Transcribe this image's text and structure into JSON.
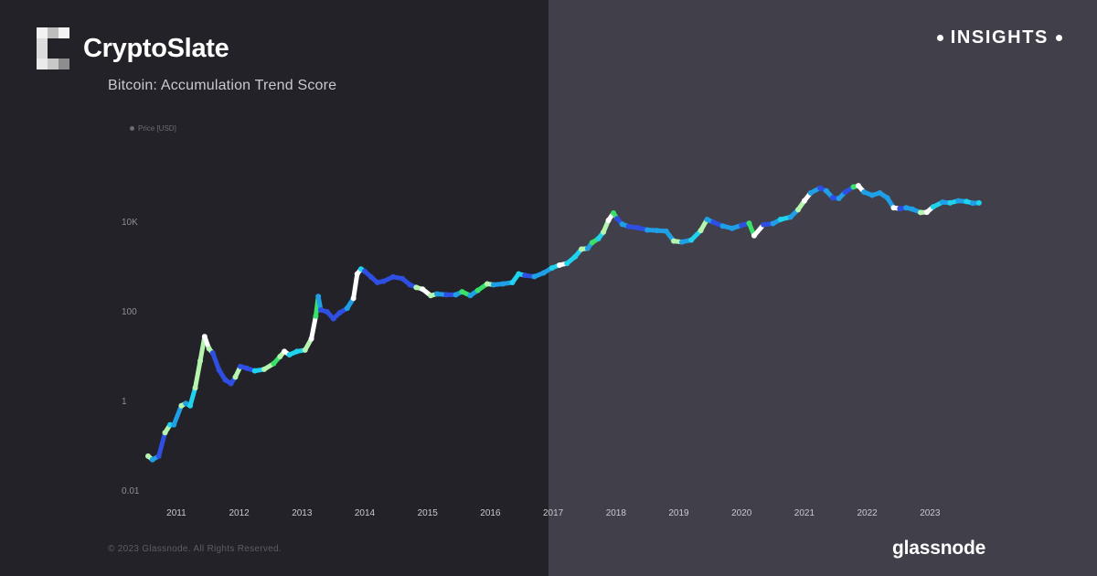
{
  "brand": {
    "name": "CryptoSlate",
    "section": "INSIGHTS"
  },
  "footer": {
    "copyright": "© 2023 Glassnode. All Rights Reserved.",
    "source": "glassnode"
  },
  "colors": {
    "background_left": "#232228",
    "background_right": "#403f4a",
    "score_high": "#ffffff",
    "score_mid_high": "#b6f5b0",
    "score_mid": "#1fd3ee",
    "score_low": "#2f4fe3",
    "score_accumulation": "#39e06a"
  },
  "chart_data": {
    "type": "line",
    "title": "Bitcoin: Accumulation Trend Score",
    "legend": [
      "Price [USD]"
    ],
    "legend_position": "top-left",
    "y_scale": "log",
    "ylim": [
      0.01,
      1000000
    ],
    "yticks": [
      {
        "value": 0.01,
        "label": "0.01"
      },
      {
        "value": 1,
        "label": "1"
      },
      {
        "value": 100,
        "label": "100"
      },
      {
        "value": 10000,
        "label": "10K"
      }
    ],
    "xlim": [
      2010.6,
      2023.8
    ],
    "xticks": [
      "2011",
      "2012",
      "2013",
      "2014",
      "2015",
      "2016",
      "2017",
      "2018",
      "2019",
      "2020",
      "2021",
      "2022",
      "2023"
    ],
    "grid": false,
    "color_encoding": "Accumulation Trend Score (0 = distribution, 1 = accumulation)",
    "series": [
      {
        "name": "Price [USD]",
        "points": [
          [
            2010.55,
            0.06,
            0.9
          ],
          [
            2010.62,
            0.05,
            0.3
          ],
          [
            2010.72,
            0.06,
            0.2
          ],
          [
            2010.82,
            0.2,
            0.9
          ],
          [
            2010.9,
            0.3,
            0.6
          ],
          [
            2010.96,
            0.3,
            0.3
          ],
          [
            2011.08,
            0.8,
            0.9
          ],
          [
            2011.15,
            0.9,
            0.4
          ],
          [
            2011.22,
            0.8,
            0.6
          ],
          [
            2011.3,
            2.0,
            0.9
          ],
          [
            2011.38,
            8.0,
            0.9
          ],
          [
            2011.45,
            28.0,
            1.0
          ],
          [
            2011.52,
            15.0,
            0.9
          ],
          [
            2011.58,
            12.0,
            0.2
          ],
          [
            2011.68,
            5.0,
            0.1
          ],
          [
            2011.78,
            3.0,
            0.1
          ],
          [
            2011.87,
            2.5,
            0.2
          ],
          [
            2011.94,
            3.5,
            0.9
          ],
          [
            2012.02,
            6.0,
            0.2
          ],
          [
            2012.12,
            5.5,
            0.2
          ],
          [
            2012.25,
            4.8,
            0.5
          ],
          [
            2012.4,
            5.2,
            0.9
          ],
          [
            2012.55,
            7.0,
            0.8
          ],
          [
            2012.65,
            10.0,
            0.9
          ],
          [
            2012.72,
            13.0,
            1.0
          ],
          [
            2012.8,
            11.0,
            0.6
          ],
          [
            2012.92,
            13.0,
            0.6
          ],
          [
            2013.05,
            14.0,
            0.9
          ],
          [
            2013.15,
            25.0,
            1.0
          ],
          [
            2013.22,
            80.0,
            0.7
          ],
          [
            2013.26,
            220.0,
            0.4
          ],
          [
            2013.3,
            110.0,
            0.1
          ],
          [
            2013.4,
            100.0,
            0.2
          ],
          [
            2013.5,
            70.0,
            0.1
          ],
          [
            2013.6,
            95.0,
            0.2
          ],
          [
            2013.72,
            120.0,
            0.3
          ],
          [
            2013.82,
            200.0,
            1.0
          ],
          [
            2013.88,
            700.0,
            1.0
          ],
          [
            2013.94,
            900.0,
            0.6
          ],
          [
            2014.0,
            800.0,
            0.2
          ],
          [
            2014.1,
            600.0,
            0.2
          ],
          [
            2014.2,
            450.0,
            0.1
          ],
          [
            2014.3,
            480.0,
            0.1
          ],
          [
            2014.45,
            600.0,
            0.2
          ],
          [
            2014.6,
            550.0,
            0.2
          ],
          [
            2014.72,
            400.0,
            0.2
          ],
          [
            2014.82,
            350.0,
            0.9
          ],
          [
            2014.92,
            320.0,
            1.0
          ],
          [
            2015.05,
            230.0,
            0.9
          ],
          [
            2015.15,
            250.0,
            0.3
          ],
          [
            2015.3,
            240.0,
            0.2
          ],
          [
            2015.45,
            240.0,
            0.4
          ],
          [
            2015.55,
            280.0,
            0.7
          ],
          [
            2015.68,
            230.0,
            0.4
          ],
          [
            2015.8,
            300.0,
            0.8
          ],
          [
            2015.95,
            420.0,
            0.9
          ],
          [
            2016.05,
            400.0,
            0.3
          ],
          [
            2016.2,
            420.0,
            0.3
          ],
          [
            2016.35,
            450.0,
            0.6
          ],
          [
            2016.45,
            700.0,
            0.5
          ],
          [
            2016.55,
            650.0,
            0.2
          ],
          [
            2016.7,
            610.0,
            0.3
          ],
          [
            2016.85,
            740.0,
            0.3
          ],
          [
            2016.98,
            950.0,
            0.5
          ],
          [
            2017.1,
            1100.0,
            1.0
          ],
          [
            2017.22,
            1200.0,
            0.6
          ],
          [
            2017.35,
            1700.0,
            0.5
          ],
          [
            2017.45,
            2500.0,
            0.9
          ],
          [
            2017.55,
            2600.0,
            0.4
          ],
          [
            2017.62,
            3500.0,
            0.8
          ],
          [
            2017.72,
            4300.0,
            0.5
          ],
          [
            2017.8,
            6000.0,
            0.9
          ],
          [
            2017.88,
            11000.0,
            1.0
          ],
          [
            2017.96,
            16000.0,
            0.8
          ],
          [
            2018.02,
            12000.0,
            0.2
          ],
          [
            2018.1,
            9000.0,
            0.3
          ],
          [
            2018.2,
            8000.0,
            0.2
          ],
          [
            2018.35,
            7500.0,
            0.2
          ],
          [
            2018.5,
            6700.0,
            0.3
          ],
          [
            2018.65,
            6500.0,
            0.3
          ],
          [
            2018.8,
            6300.0,
            0.4
          ],
          [
            2018.92,
            3800.0,
            0.9
          ],
          [
            2019.05,
            3600.0,
            0.3
          ],
          [
            2019.2,
            4000.0,
            0.5
          ],
          [
            2019.35,
            6500.0,
            0.9
          ],
          [
            2019.45,
            11500.0,
            0.4
          ],
          [
            2019.55,
            10000.0,
            0.2
          ],
          [
            2019.7,
            8200.0,
            0.3
          ],
          [
            2019.85,
            7300.0,
            0.3
          ],
          [
            2020.0,
            8500.0,
            0.2
          ],
          [
            2020.12,
            9500.0,
            0.8
          ],
          [
            2020.2,
            5000.0,
            1.0
          ],
          [
            2020.35,
            8800.0,
            0.2
          ],
          [
            2020.5,
            9300.0,
            0.3
          ],
          [
            2020.62,
            11500.0,
            0.5
          ],
          [
            2020.78,
            13000.0,
            0.4
          ],
          [
            2020.9,
            19000.0,
            0.9
          ],
          [
            2021.0,
            30000.0,
            1.0
          ],
          [
            2021.1,
            45000.0,
            0.3
          ],
          [
            2021.25,
            58000.0,
            0.2
          ],
          [
            2021.35,
            50000.0,
            0.3
          ],
          [
            2021.45,
            35000.0,
            0.2
          ],
          [
            2021.55,
            34000.0,
            0.3
          ],
          [
            2021.65,
            47000.0,
            0.2
          ],
          [
            2021.78,
            61000.0,
            0.8
          ],
          [
            2021.86,
            65000.0,
            1.0
          ],
          [
            2021.95,
            47000.0,
            0.4
          ],
          [
            2022.08,
            40000.0,
            0.3
          ],
          [
            2022.2,
            45000.0,
            0.4
          ],
          [
            2022.32,
            35000.0,
            0.3
          ],
          [
            2022.42,
            21000.0,
            1.0
          ],
          [
            2022.52,
            20000.0,
            0.2
          ],
          [
            2022.62,
            21000.0,
            0.3
          ],
          [
            2022.72,
            19500.0,
            0.4
          ],
          [
            2022.85,
            16500.0,
            0.9
          ],
          [
            2022.95,
            16700.0,
            1.0
          ],
          [
            2023.05,
            22000.0,
            0.5
          ],
          [
            2023.2,
            28000.0,
            0.3
          ],
          [
            2023.32,
            27000.0,
            0.5
          ],
          [
            2023.45,
            30000.0,
            0.4
          ],
          [
            2023.58,
            29000.0,
            0.5
          ],
          [
            2023.68,
            26500.0,
            0.3
          ],
          [
            2023.78,
            27000.0,
            0.5
          ]
        ]
      }
    ]
  }
}
